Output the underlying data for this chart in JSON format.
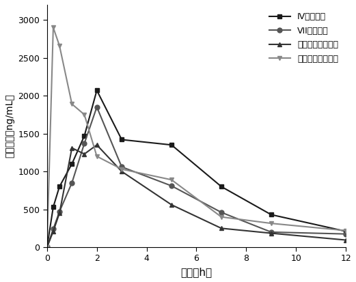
{
  "series": [
    {
      "label": "IV（口服）",
      "marker": "s",
      "color": "#1a1a1a",
      "x": [
        0,
        0.25,
        0.5,
        1,
        1.5,
        2,
        3,
        5,
        7,
        9,
        12
      ],
      "y": [
        0,
        530,
        800,
        1100,
        1470,
        2070,
        1420,
        1350,
        800,
        430,
        210
      ]
    },
    {
      "label": "VII（口服）",
      "marker": "o",
      "color": "#555555",
      "x": [
        0,
        0.25,
        0.5,
        1,
        1.5,
        2,
        3,
        5,
        7,
        9,
        12
      ],
      "y": [
        0,
        240,
        470,
        850,
        1370,
        1850,
        1060,
        810,
        460,
        200,
        175
      ]
    },
    {
      "label": "地西他滨（口服）",
      "marker": "^",
      "color": "#333333",
      "x": [
        0,
        0.25,
        0.5,
        1,
        1.5,
        2,
        3,
        5,
        7,
        9,
        12
      ],
      "y": [
        0,
        210,
        450,
        1310,
        1230,
        1350,
        1000,
        560,
        250,
        185,
        95
      ]
    },
    {
      "label": "地西他滨（静注）",
      "marker": "v",
      "color": "#888888",
      "x": [
        0,
        0.25,
        0.5,
        1,
        1.5,
        2,
        3,
        5,
        7,
        9,
        12
      ],
      "y": [
        0,
        2900,
        2660,
        1890,
        1750,
        1200,
        1030,
        890,
        400,
        315,
        220
      ]
    }
  ],
  "xlabel": "时间（h）",
  "ylabel": "血药浓度（ng/mL）",
  "xlim": [
    0,
    12
  ],
  "ylim": [
    0,
    3200
  ],
  "xticks": [
    0,
    2,
    4,
    6,
    8,
    10,
    12
  ],
  "yticks": [
    0,
    500,
    1000,
    1500,
    2000,
    2500,
    3000
  ],
  "legend_loc": "upper right",
  "figsize": [
    5.21,
    4.13
  ],
  "dpi": 100,
  "linewidth": 1.5,
  "markersize": 5
}
